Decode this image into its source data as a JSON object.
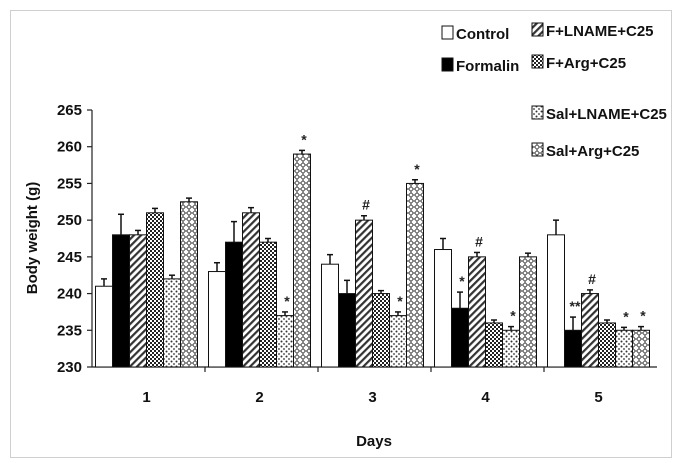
{
  "chart_data": {
    "type": "bar",
    "title": "",
    "xlabel": "Days",
    "ylabel": "Body weight (g)",
    "ylim": [
      230,
      265
    ],
    "yticks": [
      230,
      235,
      240,
      245,
      250,
      255,
      260,
      265
    ],
    "categories": [
      "1",
      "2",
      "3",
      "4",
      "5"
    ],
    "legend_position": "top-right",
    "grid": false,
    "series": [
      {
        "name": "Control",
        "pattern": "white",
        "values": [
          241,
          243,
          244,
          246,
          248
        ],
        "errors": [
          1.0,
          1.2,
          1.3,
          1.5,
          2.0
        ]
      },
      {
        "name": "Formalin",
        "pattern": "black",
        "values": [
          248,
          247,
          240,
          238,
          235
        ],
        "errors": [
          2.8,
          2.8,
          1.8,
          2.2,
          1.8
        ]
      },
      {
        "name": "F+LNAME+C25",
        "pattern": "hatch",
        "values": [
          248,
          251,
          250,
          245,
          240
        ],
        "errors": [
          0.6,
          0.7,
          0.6,
          0.6,
          0.5
        ]
      },
      {
        "name": "F+Arg+C25",
        "pattern": "checker",
        "values": [
          251,
          247,
          240,
          236,
          236
        ],
        "errors": [
          0.6,
          0.5,
          0.4,
          0.4,
          0.4
        ]
      },
      {
        "name": "Sal+LNAME+C25",
        "pattern": "dots",
        "values": [
          242,
          237,
          237,
          235,
          235
        ],
        "errors": [
          0.5,
          0.5,
          0.5,
          0.5,
          0.4
        ]
      },
      {
        "name": "Sal+Arg+C25",
        "pattern": "diamonds",
        "values": [
          252.5,
          259,
          255,
          245,
          235
        ],
        "errors": [
          0.5,
          0.5,
          0.5,
          0.5,
          0.5
        ]
      }
    ],
    "annotations": [
      {
        "category": "2",
        "series": "Sal+LNAME+C25",
        "text": "*"
      },
      {
        "category": "2",
        "series": "Sal+Arg+C25",
        "text": "*"
      },
      {
        "category": "3",
        "series": "F+LNAME+C25",
        "text": "#"
      },
      {
        "category": "3",
        "series": "Sal+LNAME+C25",
        "text": "*"
      },
      {
        "category": "3",
        "series": "Sal+Arg+C25",
        "text": "*"
      },
      {
        "category": "4",
        "series": "Formalin",
        "text": "*"
      },
      {
        "category": "4",
        "series": "F+LNAME+C25",
        "text": "#"
      },
      {
        "category": "4",
        "series": "Sal+LNAME+C25",
        "text": "*"
      },
      {
        "category": "5",
        "series": "Formalin",
        "text": "**"
      },
      {
        "category": "5",
        "series": "F+LNAME+C25",
        "text": "#"
      },
      {
        "category": "5",
        "series": "Sal+LNAME+C25",
        "text": "*"
      },
      {
        "category": "5",
        "series": "Sal+Arg+C25",
        "text": "*"
      }
    ]
  }
}
